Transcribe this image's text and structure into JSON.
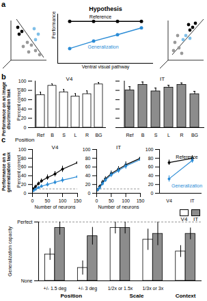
{
  "chart_data": [
    {
      "type": "line",
      "panel": "a",
      "title": "Hypothesis",
      "x": [
        1,
        2,
        3,
        4
      ],
      "xlim": [
        0.5,
        4.5
      ],
      "ylim": [
        0,
        1
      ],
      "tick_labels": false,
      "x_label": "Ventral visual pathway",
      "y_label": "Performance",
      "series": [
        {
          "name": "Reference",
          "color": "#000000",
          "marker": "circle",
          "values": [
            0.85,
            0.85,
            0.85,
            0.85
          ]
        },
        {
          "name": "Generalization",
          "color": "#2b8cd6",
          "marker": "circle",
          "values": [
            0.3,
            0.45,
            0.58,
            0.72
          ]
        }
      ]
    },
    {
      "type": "bar",
      "panel": "b",
      "side_label": "Performance on an image discrimination task",
      "title": "V4",
      "categories": [
        "Ref",
        "B",
        "S",
        "L",
        "R",
        "BG"
      ],
      "values": [
        70,
        90,
        76,
        67,
        72,
        93
      ],
      "errors": [
        6,
        4,
        6,
        6,
        7,
        4
      ],
      "color": "#ffffff",
      "ylim": [
        0,
        100
      ],
      "yticks": [
        0,
        20,
        40,
        60,
        80,
        100
      ],
      "y_label": "Percent correct"
    },
    {
      "type": "bar",
      "title": "IT",
      "categories": [
        "Ref",
        "B",
        "S",
        "L",
        "R",
        "BG"
      ],
      "values": [
        80,
        92,
        78,
        86,
        92,
        72
      ],
      "errors": [
        8,
        6,
        7,
        5,
        4,
        6
      ],
      "color": "#8c8c8c",
      "ylim": [
        0,
        100
      ],
      "yticks": [
        0,
        20,
        40,
        60,
        80,
        100
      ],
      "tick_labels": "x"
    },
    {
      "type": "line",
      "panel": "c",
      "side_label": "Performance on a generalization task",
      "subtitle": "Position",
      "title": "V4",
      "x": [
        3,
        10,
        20,
        30,
        50,
        75,
        100,
        150
      ],
      "xlim": [
        0,
        150
      ],
      "xticks": [
        0,
        50,
        100,
        150
      ],
      "ylim": [
        0,
        100
      ],
      "yticks": [
        0,
        20,
        40,
        60,
        80,
        100
      ],
      "y_label": "Percent correct",
      "x_label": "Number of neurons",
      "chance_level": 10,
      "series": [
        {
          "name": "Reference",
          "color": "#000000",
          "marker": "circle",
          "values": [
            10,
            15,
            22,
            28,
            36,
            44,
            55,
            70
          ],
          "errors": [
            3,
            4,
            4,
            5,
            6,
            6,
            7,
            8
          ]
        },
        {
          "name": "Generalization",
          "color": "#2b8cd6",
          "marker": "circle",
          "values": [
            6,
            9,
            13,
            16,
            20,
            25,
            30,
            38
          ],
          "errors": [
            2,
            3,
            3,
            4,
            5,
            5,
            6,
            7
          ]
        }
      ]
    },
    {
      "type": "line",
      "title": "IT",
      "x": [
        3,
        10,
        20,
        30,
        50,
        75,
        100,
        150
      ],
      "xlim": [
        0,
        150
      ],
      "xticks": [
        0,
        50,
        100,
        150
      ],
      "ylim": [
        0,
        100
      ],
      "yticks": [
        0,
        20,
        40,
        60,
        80,
        100
      ],
      "x_label": "Number of neurons",
      "chance_level": 10,
      "series": [
        {
          "name": "Reference",
          "color": "#000000",
          "marker": "circle",
          "values": [
            8,
            15,
            25,
            33,
            45,
            55,
            65,
            80
          ],
          "errors": [
            3,
            4,
            5,
            5,
            6,
            6,
            7,
            7
          ]
        },
        {
          "name": "Generalization",
          "color": "#2b8cd6",
          "marker": "circle",
          "values": [
            8,
            12,
            22,
            30,
            42,
            52,
            62,
            77
          ],
          "errors": [
            3,
            4,
            5,
            5,
            6,
            6,
            7,
            7
          ]
        }
      ]
    },
    {
      "type": "line",
      "categories": [
        "V4",
        "IT"
      ],
      "ylim": [
        0,
        100
      ],
      "yticks": [
        0,
        20,
        40,
        60,
        80,
        100
      ],
      "series": [
        {
          "name": "Reference",
          "color": "#000000",
          "marker": "circle",
          "values": [
            70,
            80
          ],
          "errors": [
            6,
            6
          ]
        },
        {
          "name": "Generalization",
          "color": "#2b8cd6",
          "marker": "circle",
          "values": [
            33,
            75
          ],
          "errors": [
            7,
            6
          ]
        }
      ]
    },
    {
      "type": "bar",
      "panel": "d",
      "categories": [
        "+/- 1.5 deg",
        "+/- 3 deg",
        "1/2x or 1.5x",
        "1/3x or 3x",
        null
      ],
      "groups": [
        "Position",
        "Position",
        "Scale",
        "Scale",
        "Context"
      ],
      "ylim": [
        0,
        1
      ],
      "yticks": [
        {
          "value": 0,
          "label": "None"
        },
        {
          "value": 1,
          "label": "Perfect"
        }
      ],
      "y_label": "Generalization capacity",
      "legend": "top-right",
      "series": [
        {
          "name": "V4",
          "color": "#ffffff",
          "values": [
            0.45,
            0.22,
            0.9,
            0.7,
            0.5
          ],
          "errors": [
            0.1,
            0.12,
            0.1,
            0.18,
            0.1
          ]
        },
        {
          "name": "IT",
          "color": "#8c8c8c",
          "values": [
            0.9,
            0.76,
            0.9,
            0.8,
            0.8
          ],
          "errors": [
            0.12,
            0.15,
            0.1,
            0.2,
            0.1
          ]
        }
      ]
    }
  ]
}
